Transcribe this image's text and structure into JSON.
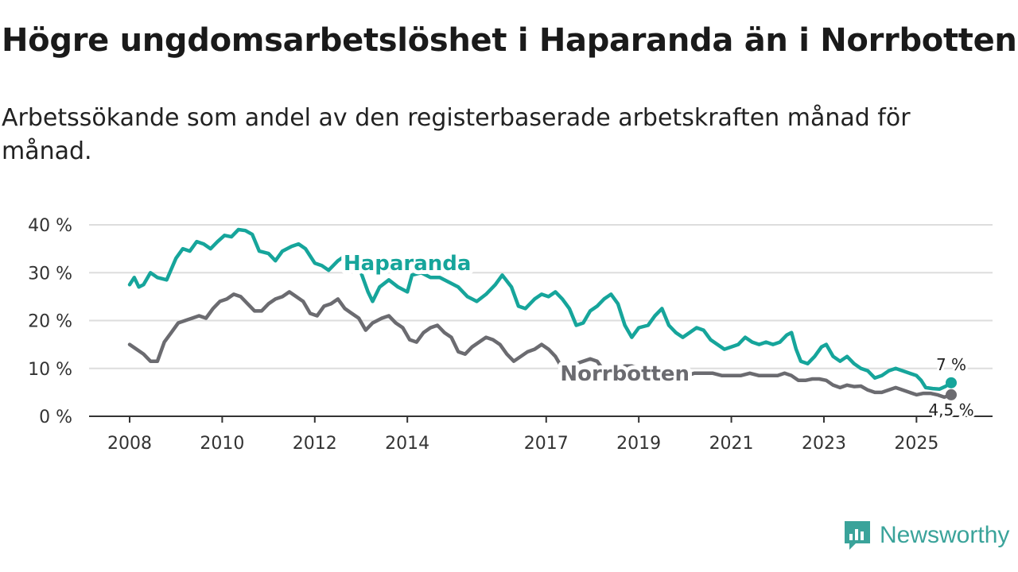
{
  "title": "Högre ungdomsarbetslöshet i Haparanda än i Norrbotten",
  "subtitle": "Arbetssökande som andel av den registerbaserade arbetskraften månad för månad.",
  "brand": {
    "name": "Newsworthy",
    "color": "#3aa39a"
  },
  "chart_data": {
    "type": "line",
    "title": "Högre ungdomsarbetslöshet i Haparanda än i Norrbotten",
    "xlabel": "",
    "ylabel": "",
    "ylim": [
      0,
      40
    ],
    "yticks": [
      0,
      10,
      20,
      30,
      40
    ],
    "ytick_labels": [
      "0 %",
      "10 %",
      "20 %",
      "30 %",
      "40 %"
    ],
    "xlim": [
      2008,
      2025.75
    ],
    "xticks": [
      2008,
      2010,
      2012,
      2014,
      2017,
      2019,
      2021,
      2023,
      2025
    ],
    "xtick_labels": [
      "2008",
      "2010",
      "2012",
      "2014",
      "2017",
      "2019",
      "2021",
      "2023",
      "2025"
    ],
    "grid": true,
    "legend": "inline labels",
    "series": [
      {
        "name": "Haparanda",
        "color": "#16a59b",
        "end_label": "7 %",
        "points": [
          [
            2008.0,
            27.5
          ],
          [
            2008.1,
            29
          ],
          [
            2008.2,
            27
          ],
          [
            2008.3,
            27.5
          ],
          [
            2008.45,
            30
          ],
          [
            2008.6,
            29
          ],
          [
            2008.8,
            28.5
          ],
          [
            2009.0,
            33
          ],
          [
            2009.15,
            35
          ],
          [
            2009.3,
            34.5
          ],
          [
            2009.45,
            36.5
          ],
          [
            2009.6,
            36
          ],
          [
            2009.75,
            35
          ],
          [
            2009.9,
            36.5
          ],
          [
            2010.05,
            37.8
          ],
          [
            2010.2,
            37.5
          ],
          [
            2010.35,
            39
          ],
          [
            2010.5,
            38.8
          ],
          [
            2010.65,
            38
          ],
          [
            2010.8,
            34.5
          ],
          [
            2011.0,
            34
          ],
          [
            2011.15,
            32.5
          ],
          [
            2011.3,
            34.5
          ],
          [
            2011.5,
            35.5
          ],
          [
            2011.65,
            36
          ],
          [
            2011.8,
            35
          ],
          [
            2012.0,
            32
          ],
          [
            2012.15,
            31.5
          ],
          [
            2012.3,
            30.5
          ],
          [
            2012.5,
            32.5
          ],
          [
            2012.65,
            33.5
          ],
          [
            2012.8,
            33
          ],
          [
            2013.0,
            30
          ],
          [
            2013.15,
            26
          ],
          [
            2013.25,
            24
          ],
          [
            2013.4,
            27
          ],
          [
            2013.6,
            28.5
          ],
          [
            2013.8,
            27
          ],
          [
            2014.0,
            26
          ],
          [
            2014.1,
            29.5
          ],
          [
            2014.3,
            30
          ],
          [
            2014.5,
            29
          ],
          [
            2014.7,
            29
          ],
          [
            2014.9,
            28
          ],
          [
            2015.1,
            27
          ],
          [
            2015.3,
            25
          ],
          [
            2015.5,
            24
          ],
          [
            2015.7,
            25.5
          ],
          [
            2015.9,
            27.5
          ],
          [
            2016.05,
            29.5
          ],
          [
            2016.25,
            27
          ],
          [
            2016.4,
            23
          ],
          [
            2016.55,
            22.5
          ],
          [
            2016.75,
            24.5
          ],
          [
            2016.9,
            25.5
          ],
          [
            2017.05,
            25
          ],
          [
            2017.2,
            26
          ],
          [
            2017.35,
            24.5
          ],
          [
            2017.5,
            22.5
          ],
          [
            2017.65,
            19
          ],
          [
            2017.8,
            19.5
          ],
          [
            2017.95,
            22
          ],
          [
            2018.1,
            23
          ],
          [
            2018.25,
            24.5
          ],
          [
            2018.4,
            25.5
          ],
          [
            2018.55,
            23.5
          ],
          [
            2018.7,
            19
          ],
          [
            2018.85,
            16.5
          ],
          [
            2019.0,
            18.5
          ],
          [
            2019.2,
            19
          ],
          [
            2019.35,
            21
          ],
          [
            2019.5,
            22.5
          ],
          [
            2019.65,
            19
          ],
          [
            2019.8,
            17.5
          ],
          [
            2019.95,
            16.5
          ],
          [
            2020.1,
            17.5
          ],
          [
            2020.25,
            18.5
          ],
          [
            2020.4,
            18
          ],
          [
            2020.55,
            16
          ],
          [
            2020.7,
            15
          ],
          [
            2020.85,
            14
          ],
          [
            2021.0,
            14.5
          ],
          [
            2021.15,
            15
          ],
          [
            2021.3,
            16.5
          ],
          [
            2021.45,
            15.5
          ],
          [
            2021.6,
            15
          ],
          [
            2021.75,
            15.5
          ],
          [
            2021.9,
            15
          ],
          [
            2022.05,
            15.5
          ],
          [
            2022.2,
            17
          ],
          [
            2022.3,
            17.5
          ],
          [
            2022.4,
            14
          ],
          [
            2022.5,
            11.5
          ],
          [
            2022.65,
            11
          ],
          [
            2022.8,
            12.5
          ],
          [
            2022.95,
            14.5
          ],
          [
            2023.05,
            15
          ],
          [
            2023.2,
            12.5
          ],
          [
            2023.35,
            11.5
          ],
          [
            2023.5,
            12.5
          ],
          [
            2023.65,
            11
          ],
          [
            2023.8,
            10
          ],
          [
            2023.95,
            9.5
          ],
          [
            2024.1,
            8
          ],
          [
            2024.25,
            8.5
          ],
          [
            2024.4,
            9.5
          ],
          [
            2024.55,
            10
          ],
          [
            2024.7,
            9.5
          ],
          [
            2024.85,
            9
          ],
          [
            2025.0,
            8.5
          ],
          [
            2025.1,
            7.5
          ],
          [
            2025.2,
            6
          ],
          [
            2025.35,
            5.8
          ],
          [
            2025.5,
            5.7
          ],
          [
            2025.62,
            6.2
          ],
          [
            2025.75,
            7
          ]
        ]
      },
      {
        "name": "Norrbotten",
        "color": "#6b6b70",
        "end_label": "4,5 %",
        "points": [
          [
            2008.0,
            15
          ],
          [
            2008.15,
            14
          ],
          [
            2008.3,
            13
          ],
          [
            2008.45,
            11.5
          ],
          [
            2008.6,
            11.5
          ],
          [
            2008.75,
            15.5
          ],
          [
            2008.9,
            17.5
          ],
          [
            2009.05,
            19.5
          ],
          [
            2009.2,
            20
          ],
          [
            2009.35,
            20.5
          ],
          [
            2009.5,
            21
          ],
          [
            2009.65,
            20.5
          ],
          [
            2009.8,
            22.5
          ],
          [
            2009.95,
            24
          ],
          [
            2010.1,
            24.5
          ],
          [
            2010.25,
            25.5
          ],
          [
            2010.4,
            25
          ],
          [
            2010.55,
            23.5
          ],
          [
            2010.7,
            22
          ],
          [
            2010.85,
            22
          ],
          [
            2011.0,
            23.5
          ],
          [
            2011.15,
            24.5
          ],
          [
            2011.3,
            25
          ],
          [
            2011.45,
            26
          ],
          [
            2011.6,
            25
          ],
          [
            2011.75,
            24
          ],
          [
            2011.9,
            21.5
          ],
          [
            2012.05,
            21
          ],
          [
            2012.2,
            23
          ],
          [
            2012.35,
            23.5
          ],
          [
            2012.5,
            24.5
          ],
          [
            2012.65,
            22.5
          ],
          [
            2012.8,
            21.5
          ],
          [
            2012.95,
            20.5
          ],
          [
            2013.1,
            18
          ],
          [
            2013.25,
            19.5
          ],
          [
            2013.45,
            20.5
          ],
          [
            2013.6,
            21
          ],
          [
            2013.75,
            19.5
          ],
          [
            2013.9,
            18.5
          ],
          [
            2014.05,
            16
          ],
          [
            2014.2,
            15.5
          ],
          [
            2014.35,
            17.5
          ],
          [
            2014.5,
            18.5
          ],
          [
            2014.65,
            19
          ],
          [
            2014.8,
            17.5
          ],
          [
            2014.95,
            16.5
          ],
          [
            2015.1,
            13.5
          ],
          [
            2015.25,
            13
          ],
          [
            2015.4,
            14.5
          ],
          [
            2015.55,
            15.5
          ],
          [
            2015.7,
            16.5
          ],
          [
            2015.85,
            16
          ],
          [
            2016.0,
            15
          ],
          [
            2016.15,
            13
          ],
          [
            2016.3,
            11.5
          ],
          [
            2016.45,
            12.5
          ],
          [
            2016.6,
            13.5
          ],
          [
            2016.75,
            14
          ],
          [
            2016.9,
            15
          ],
          [
            2017.05,
            14
          ],
          [
            2017.2,
            12.5
          ],
          [
            2017.35,
            10
          ],
          [
            2017.5,
            10.5
          ],
          [
            2017.65,
            11
          ],
          [
            2017.8,
            11.5
          ],
          [
            2017.95,
            12
          ],
          [
            2018.1,
            11.5
          ],
          [
            2018.25,
            9.5
          ],
          [
            2018.4,
            8.5
          ],
          [
            2018.55,
            9.5
          ],
          [
            2018.7,
            10.5
          ],
          [
            2018.85,
            10.5
          ],
          [
            2019.0,
            10
          ],
          [
            2019.15,
            9.5
          ],
          [
            2019.3,
            9
          ],
          [
            2019.45,
            9.5
          ],
          [
            2019.6,
            9.5
          ],
          [
            2019.75,
            9
          ],
          [
            2019.9,
            8.5
          ],
          [
            2020.05,
            8.5
          ],
          [
            2020.2,
            9
          ],
          [
            2020.4,
            9
          ],
          [
            2020.6,
            9
          ],
          [
            2020.8,
            8.5
          ],
          [
            2021.0,
            8.5
          ],
          [
            2021.2,
            8.5
          ],
          [
            2021.4,
            9
          ],
          [
            2021.6,
            8.5
          ],
          [
            2021.8,
            8.5
          ],
          [
            2022.0,
            8.5
          ],
          [
            2022.15,
            9
          ],
          [
            2022.3,
            8.5
          ],
          [
            2022.45,
            7.5
          ],
          [
            2022.6,
            7.5
          ],
          [
            2022.75,
            7.8
          ],
          [
            2022.9,
            7.8
          ],
          [
            2023.05,
            7.5
          ],
          [
            2023.2,
            6.5
          ],
          [
            2023.35,
            6
          ],
          [
            2023.5,
            6.5
          ],
          [
            2023.65,
            6.2
          ],
          [
            2023.8,
            6.3
          ],
          [
            2023.95,
            5.5
          ],
          [
            2024.1,
            5
          ],
          [
            2024.25,
            5
          ],
          [
            2024.4,
            5.5
          ],
          [
            2024.55,
            6
          ],
          [
            2024.7,
            5.5
          ],
          [
            2024.85,
            5
          ],
          [
            2025.0,
            4.5
          ],
          [
            2025.15,
            4.8
          ],
          [
            2025.3,
            4.8
          ],
          [
            2025.45,
            4.5
          ],
          [
            2025.6,
            4
          ],
          [
            2025.75,
            4.5
          ]
        ]
      }
    ],
    "annotations": [
      {
        "text": "Haparanda",
        "series": "Haparanda",
        "x": 2014.0,
        "y": 32
      },
      {
        "text": "Norrbotten",
        "series": "Norrbotten",
        "x": 2018.7,
        "y": 9
      }
    ]
  }
}
